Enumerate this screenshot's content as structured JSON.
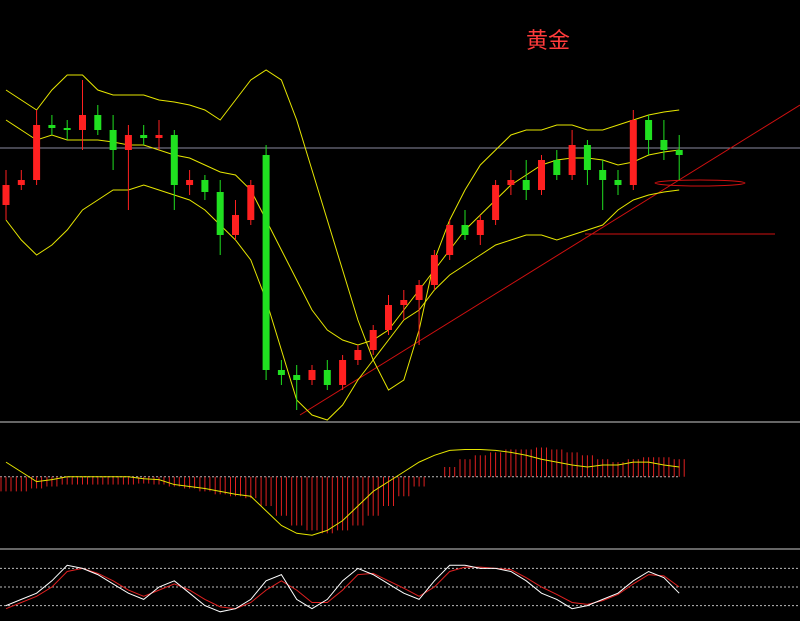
{
  "chart_data": {
    "type": "candlestick",
    "title": "黄金",
    "ylim": [
      0,
      420
    ],
    "candles": [
      [
        215,
        250,
        200,
        235
      ],
      [
        235,
        250,
        230,
        240
      ],
      [
        240,
        310,
        235,
        295
      ],
      [
        295,
        305,
        285,
        292
      ],
      [
        292,
        300,
        280,
        290
      ],
      [
        290,
        340,
        270,
        305
      ],
      [
        305,
        315,
        285,
        290
      ],
      [
        290,
        305,
        250,
        270
      ],
      [
        270,
        295,
        210,
        285
      ],
      [
        285,
        295,
        275,
        282
      ],
      [
        282,
        300,
        270,
        285
      ],
      [
        285,
        290,
        210,
        235
      ],
      [
        235,
        250,
        225,
        240
      ],
      [
        240,
        245,
        220,
        228
      ],
      [
        228,
        240,
        165,
        185
      ],
      [
        185,
        220,
        180,
        205
      ],
      [
        200,
        240,
        195,
        235
      ],
      [
        265,
        275,
        40,
        50
      ],
      [
        50,
        60,
        35,
        45
      ],
      [
        45,
        55,
        10,
        40
      ],
      [
        40,
        55,
        35,
        50
      ],
      [
        50,
        60,
        30,
        35
      ],
      [
        35,
        65,
        30,
        60
      ],
      [
        60,
        75,
        55,
        70
      ],
      [
        70,
        95,
        65,
        90
      ],
      [
        90,
        125,
        85,
        115
      ],
      [
        115,
        130,
        100,
        120
      ],
      [
        120,
        140,
        75,
        135
      ],
      [
        135,
        170,
        130,
        165
      ],
      [
        165,
        200,
        160,
        195
      ],
      [
        195,
        210,
        180,
        185
      ],
      [
        185,
        205,
        175,
        200
      ],
      [
        200,
        240,
        195,
        235
      ],
      [
        235,
        250,
        225,
        240
      ],
      [
        240,
        260,
        220,
        230
      ],
      [
        230,
        265,
        225,
        260
      ],
      [
        260,
        270,
        240,
        245
      ],
      [
        245,
        290,
        240,
        275
      ],
      [
        275,
        280,
        235,
        250
      ],
      [
        250,
        260,
        210,
        240
      ],
      [
        240,
        250,
        225,
        235
      ],
      [
        235,
        310,
        230,
        300
      ],
      [
        300,
        305,
        265,
        280
      ],
      [
        280,
        300,
        260,
        270
      ],
      [
        270,
        285,
        240,
        265
      ]
    ],
    "bands": [
      {
        "name": "upper",
        "color": "#e6e600",
        "values": [
          330,
          320,
          310,
          330,
          345,
          345,
          330,
          325,
          325,
          325,
          320,
          318,
          315,
          310,
          300,
          320,
          340,
          350,
          340,
          300,
          250,
          200,
          150,
          100,
          60,
          30,
          40,
          90,
          160,
          200,
          230,
          255,
          270,
          285,
          290,
          290,
          295,
          295,
          290,
          290,
          295,
          300,
          305,
          308,
          310
        ]
      },
      {
        "name": "mid",
        "color": "#e6e600",
        "values": [
          300,
          290,
          280,
          285,
          280,
          280,
          280,
          278,
          275,
          275,
          270,
          265,
          262,
          255,
          248,
          245,
          230,
          200,
          170,
          140,
          110,
          90,
          80,
          75,
          80,
          90,
          110,
          130,
          150,
          170,
          190,
          205,
          220,
          235,
          245,
          255,
          260,
          262,
          262,
          260,
          255,
          258,
          265,
          268,
          270
        ]
      },
      {
        "name": "lower",
        "color": "#e6e600",
        "values": [
          200,
          180,
          165,
          175,
          190,
          210,
          220,
          230,
          230,
          235,
          230,
          225,
          220,
          210,
          195,
          180,
          160,
          120,
          70,
          20,
          5,
          0,
          15,
          40,
          60,
          80,
          100,
          110,
          130,
          145,
          155,
          165,
          175,
          180,
          185,
          185,
          180,
          185,
          190,
          195,
          210,
          220,
          225,
          228,
          230
        ]
      }
    ],
    "macd": {
      "ylim": [
        -70,
        50
      ],
      "hist": [
        -15,
        -15,
        -12,
        -10,
        -8,
        -8,
        -8,
        -8,
        -8,
        -7,
        -8,
        -10,
        -12,
        -15,
        -18,
        -20,
        -22,
        -30,
        -40,
        -50,
        -55,
        -58,
        -55,
        -50,
        -40,
        -30,
        -20,
        -10,
        0,
        10,
        18,
        22,
        25,
        28,
        28,
        30,
        28,
        25,
        22,
        18,
        15,
        18,
        20,
        20,
        18
      ],
      "dif": [
        15,
        5,
        -5,
        -3,
        0,
        0,
        0,
        0,
        0,
        -2,
        -3,
        -8,
        -10,
        -12,
        -15,
        -18,
        -20,
        -35,
        -50,
        -58,
        -60,
        -55,
        -45,
        -30,
        -15,
        -5,
        5,
        15,
        22,
        27,
        28,
        28,
        27,
        25,
        22,
        18,
        15,
        12,
        10,
        12,
        12,
        15,
        15,
        12,
        10
      ]
    },
    "kdj": {
      "ylim": [
        0,
        100
      ],
      "levels": [
        20,
        50,
        80
      ],
      "k": [
        20,
        30,
        40,
        60,
        85,
        80,
        70,
        55,
        40,
        30,
        50,
        60,
        40,
        20,
        10,
        15,
        30,
        60,
        70,
        30,
        15,
        30,
        60,
        80,
        70,
        55,
        40,
        30,
        60,
        85,
        85,
        80,
        80,
        75,
        60,
        40,
        30,
        15,
        20,
        30,
        40,
        60,
        75,
        65,
        40
      ],
      "d": [
        15,
        25,
        35,
        50,
        75,
        80,
        72,
        60,
        45,
        35,
        45,
        55,
        45,
        30,
        18,
        15,
        25,
        45,
        60,
        45,
        25,
        25,
        45,
        70,
        72,
        60,
        48,
        35,
        50,
        75,
        82,
        82,
        80,
        78,
        65,
        50,
        38,
        25,
        22,
        28,
        38,
        55,
        70,
        68,
        50
      ]
    }
  }
}
